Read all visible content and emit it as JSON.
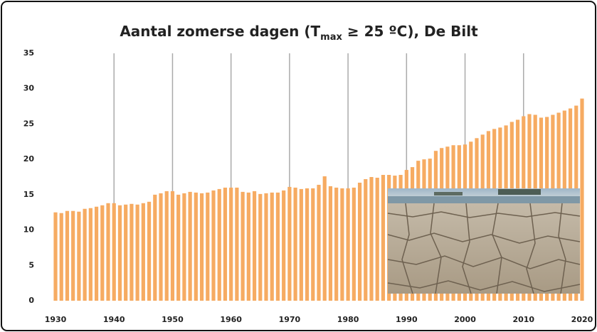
{
  "chart_data": {
    "type": "bar",
    "title_parts": [
      "Aantal zomerse dagen (T",
      "max",
      " ≥ 25 ºC), De Bilt"
    ],
    "x": [
      1930,
      1931,
      1932,
      1933,
      1934,
      1935,
      1936,
      1937,
      1938,
      1939,
      1940,
      1941,
      1942,
      1943,
      1944,
      1945,
      1946,
      1947,
      1948,
      1949,
      1950,
      1951,
      1952,
      1953,
      1954,
      1955,
      1956,
      1957,
      1958,
      1959,
      1960,
      1961,
      1962,
      1963,
      1964,
      1965,
      1966,
      1967,
      1968,
      1969,
      1970,
      1971,
      1972,
      1973,
      1974,
      1975,
      1976,
      1977,
      1978,
      1979,
      1980,
      1981,
      1982,
      1983,
      1984,
      1985,
      1986,
      1987,
      1988,
      1989,
      1990,
      1991,
      1992,
      1993,
      1994,
      1995,
      1996,
      1997,
      1998,
      1999,
      2000,
      2001,
      2002,
      2003,
      2004,
      2005,
      2006,
      2007,
      2008,
      2009,
      2010,
      2011,
      2012,
      2013,
      2014,
      2015,
      2016,
      2017,
      2018,
      2019,
      2020
    ],
    "values": [
      12.5,
      12.4,
      12.7,
      12.7,
      12.6,
      13.0,
      13.1,
      13.3,
      13.5,
      13.8,
      13.8,
      13.5,
      13.6,
      13.7,
      13.6,
      13.8,
      14.0,
      15.0,
      15.2,
      15.5,
      15.5,
      15.0,
      15.2,
      15.4,
      15.3,
      15.2,
      15.3,
      15.6,
      15.8,
      16.0,
      16.0,
      16.0,
      15.4,
      15.3,
      15.5,
      15.1,
      15.2,
      15.3,
      15.3,
      15.6,
      16.1,
      16.0,
      15.8,
      15.9,
      15.9,
      16.4,
      17.6,
      16.2,
      16.0,
      15.9,
      15.9,
      16.0,
      16.7,
      17.2,
      17.5,
      17.4,
      17.8,
      17.8,
      17.7,
      17.8,
      18.5,
      18.9,
      19.8,
      20.0,
      20.1,
      21.2,
      21.6,
      21.8,
      22.0,
      22.0,
      22.1,
      22.5,
      23.0,
      23.5,
      24.0,
      24.3,
      24.5,
      24.8,
      25.3,
      25.6,
      26.1,
      26.4,
      26.3,
      25.9,
      26.0,
      26.3,
      26.6,
      26.9,
      27.2,
      27.6,
      28.6
    ],
    "color": "#f6ab62",
    "xlim": [
      1929.5,
      2020.5
    ],
    "xticks": [
      1930,
      1940,
      1950,
      1960,
      1970,
      1980,
      1990,
      2000,
      2010,
      2020
    ],
    "ylim": [
      0,
      35
    ],
    "yticks": [
      0,
      5,
      10,
      15,
      20,
      25,
      30,
      35
    ],
    "vertical_grid": true
  }
}
